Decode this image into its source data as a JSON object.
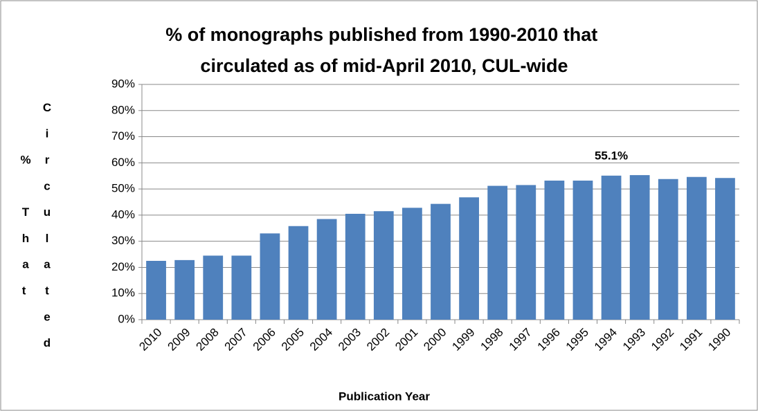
{
  "chart_data": {
    "type": "bar",
    "title": "% of monographs published from 1990-2010 that circulated as of mid-April 2010, CUL-wide",
    "x_label": "Publication Year",
    "y_label": "% That Circulated",
    "categories": [
      "2010",
      "2009",
      "2008",
      "2007",
      "2006",
      "2005",
      "2004",
      "2003",
      "2002",
      "2001",
      "2000",
      "1999",
      "1998",
      "1997",
      "1996",
      "1995",
      "1994",
      "1993",
      "1992",
      "1991",
      "1990"
    ],
    "values": [
      22.5,
      22.8,
      24.5,
      24.5,
      33.0,
      35.8,
      38.5,
      40.5,
      41.5,
      42.8,
      44.3,
      46.8,
      51.2,
      51.5,
      53.2,
      53.2,
      55.1,
      55.3,
      53.8,
      54.6,
      54.2
    ],
    "value_labels": [
      null,
      null,
      null,
      null,
      null,
      null,
      null,
      null,
      null,
      null,
      null,
      null,
      null,
      null,
      null,
      null,
      "55.1%",
      null,
      null,
      null,
      null
    ],
    "color": "#4f81bd",
    "ylim": [
      0,
      90
    ],
    "yticks": [
      {
        "value": 0,
        "label": "0%"
      },
      {
        "value": 10,
        "label": "10%"
      },
      {
        "value": 20,
        "label": "20%"
      },
      {
        "value": 30,
        "label": "30%"
      },
      {
        "value": 40,
        "label": "40%"
      },
      {
        "value": 50,
        "label": "50%"
      },
      {
        "value": 60,
        "label": "60%"
      },
      {
        "value": 70,
        "label": "70%"
      },
      {
        "value": 80,
        "label": "80%"
      },
      {
        "value": 90,
        "label": "90%"
      }
    ],
    "grid": true
  }
}
